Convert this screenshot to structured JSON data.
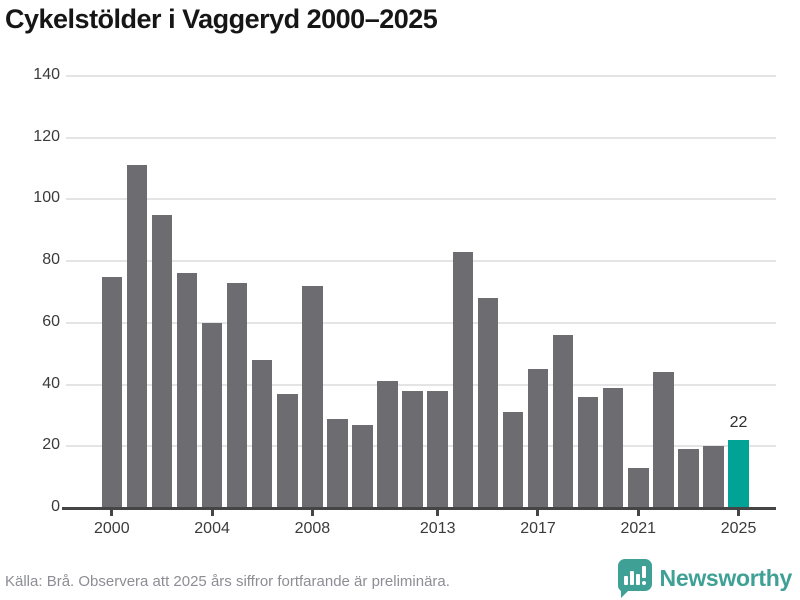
{
  "chart_data": {
    "type": "bar",
    "title": "Cykelstölder i Vaggeryd 2000–2025",
    "categories": [
      2000,
      2001,
      2002,
      2003,
      2004,
      2005,
      2006,
      2007,
      2008,
      2009,
      2010,
      2011,
      2012,
      2013,
      2014,
      2015,
      2016,
      2017,
      2018,
      2019,
      2020,
      2021,
      2022,
      2023,
      2024,
      2025
    ],
    "values": [
      75,
      111,
      95,
      76,
      60,
      73,
      48,
      37,
      72,
      29,
      27,
      41,
      38,
      38,
      83,
      68,
      31,
      45,
      56,
      36,
      39,
      13,
      44,
      19,
      20,
      22
    ],
    "ylim": [
      0,
      140
    ],
    "yticks": [
      0,
      20,
      40,
      60,
      80,
      100,
      120,
      140
    ],
    "xtick_years": [
      2000,
      2004,
      2008,
      2013,
      2017,
      2021,
      2025
    ],
    "grid": true,
    "legend": false,
    "bar_color": "#6d6d71",
    "highlight": {
      "year": 2025,
      "value": 22,
      "label": "22",
      "color": "#00a396"
    }
  },
  "footer": {
    "source": "Källa: Brå. Observera att 2025 års siffror fortfarande är preliminära.",
    "brand": "Newsworthy",
    "brand_color": "#3fa096"
  }
}
